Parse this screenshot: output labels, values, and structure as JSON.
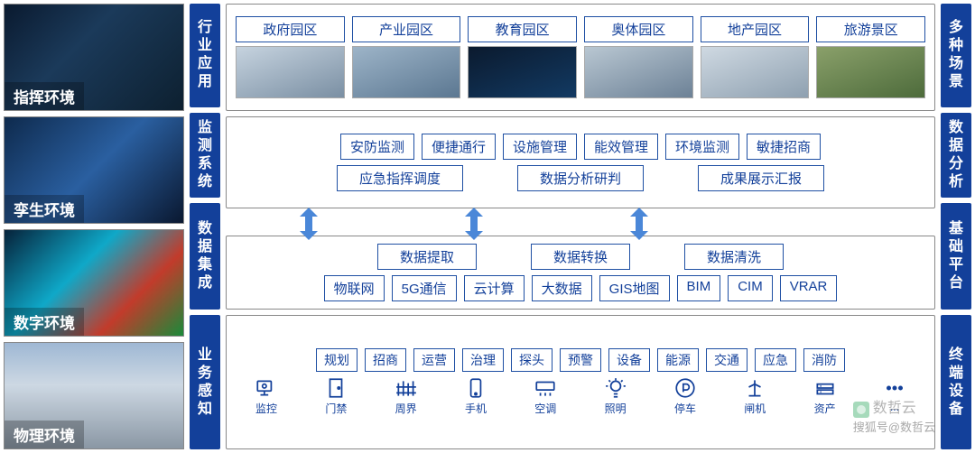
{
  "colors": {
    "brand": "#13409a",
    "arrow": "#4a87d8",
    "border": "#888888"
  },
  "left_envs": [
    {
      "label": "指挥环境",
      "img_class": "g1"
    },
    {
      "label": "孪生环境",
      "img_class": "g2"
    },
    {
      "label": "数字环境",
      "img_class": "g3"
    },
    {
      "label": "物理环境",
      "img_class": "g4"
    }
  ],
  "left_bar": [
    {
      "text": "行业应用",
      "flex": 112
    },
    {
      "text": "监测系统",
      "flex": 92
    },
    {
      "text": "数据集成",
      "flex": 115
    },
    {
      "text": "业务感知",
      "flex": 145
    }
  ],
  "right_bar": [
    {
      "text": "多种场景",
      "flex": 112
    },
    {
      "text": "数据分析",
      "flex": 92
    },
    {
      "text": "基础平台",
      "flex": 115
    },
    {
      "text": "终端设备",
      "flex": 145
    }
  ],
  "apps": [
    {
      "label": "政府园区",
      "thumb": "t1"
    },
    {
      "label": "产业园区",
      "thumb": "t2"
    },
    {
      "label": "教育园区",
      "thumb": "t3"
    },
    {
      "label": "奥体园区",
      "thumb": "t4"
    },
    {
      "label": "地产园区",
      "thumb": "t5"
    },
    {
      "label": "旅游景区",
      "thumb": "t6"
    }
  ],
  "monitor": {
    "row1": [
      "安防监测",
      "便捷通行",
      "设施管理",
      "能效管理",
      "环境监测",
      "敏捷招商"
    ],
    "row2": [
      "应急指挥调度",
      "数据分析研判",
      "成果展示汇报"
    ]
  },
  "integration": {
    "row1": [
      "数据提取",
      "数据转换",
      "数据清洗"
    ],
    "row2": [
      "物联网",
      "5G通信",
      "云计算",
      "大数据",
      "GIS地图",
      "BIM",
      "CIM",
      "VRAR"
    ]
  },
  "perception": {
    "tags": [
      "规划",
      "招商",
      "运营",
      "治理",
      "探头",
      "预警",
      "设备",
      "能源",
      "交通",
      "应急",
      "消防"
    ],
    "icons": [
      {
        "name": "monitor-icon",
        "label": "监控"
      },
      {
        "name": "gate-icon",
        "label": "门禁"
      },
      {
        "name": "fence-icon",
        "label": "周界"
      },
      {
        "name": "phone-icon",
        "label": "手机"
      },
      {
        "name": "ac-icon",
        "label": "空调"
      },
      {
        "name": "light-icon",
        "label": "照明"
      },
      {
        "name": "parking-icon",
        "label": "停车"
      },
      {
        "name": "turnstile-icon",
        "label": "闸机"
      },
      {
        "name": "asset-icon",
        "label": "资产"
      },
      {
        "name": "more-icon",
        "label": "..."
      }
    ]
  },
  "watermark": "搜狐号@数哲云",
  "watermark2": "数哲云"
}
